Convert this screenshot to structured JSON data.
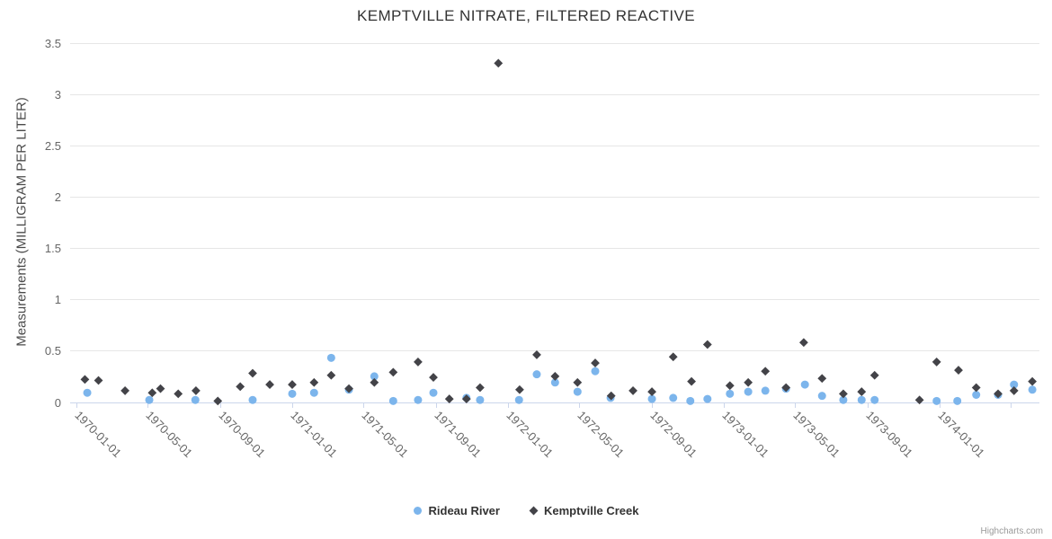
{
  "title": "KEMPTVILLE NITRATE, FILTERED REACTIVE",
  "credit": "Highcharts.com",
  "colors": {
    "series_rideau": "#7cb5ec",
    "series_kemptville": "#434348",
    "gridline": "#e6e6e6",
    "axis_line": "#ccd6eb",
    "tick_label": "#666666",
    "title_text": "#333333"
  },
  "chart_data": {
    "type": "scatter",
    "title": "KEMPTVILLE NITRATE, FILTERED REACTIVE",
    "xlabel": "",
    "ylabel": "Measurements (MILLIGRAM PER LITER)",
    "ylim": [
      0,
      3.5
    ],
    "y_ticks": [
      0,
      0.5,
      1,
      1.5,
      2,
      2.5,
      3,
      3.5
    ],
    "x_range": [
      "1969-12-21",
      "1974-06-19"
    ],
    "x_ticks": [
      "1970-01-01",
      "1970-05-01",
      "1970-09-01",
      "1971-01-01",
      "1971-05-01",
      "1971-09-01",
      "1972-01-01",
      "1972-05-01",
      "1972-09-01",
      "1973-01-01",
      "1973-05-01",
      "1973-09-01",
      "1974-01-01",
      "1974-05-01"
    ],
    "x_tick_labels": [
      "1970-01-01",
      "1970-05-01",
      "1970-09-01",
      "1971-01-01",
      "1971-05-01",
      "1971-09-01",
      "1972-01-01",
      "1972-05-01",
      "1972-09-01",
      "1973-01-01",
      "1973-05-01",
      "1973-09-01",
      "1974-01-01",
      ""
    ],
    "grid": "horizontal",
    "legend_position": "bottom-center",
    "series": [
      {
        "name": "Rideau River",
        "marker": "circle",
        "color": "#7cb5ec",
        "points": [
          [
            "1970-01-19",
            0.09
          ],
          [
            "1970-05-04",
            0.02
          ],
          [
            "1970-07-21",
            0.02
          ],
          [
            "1970-10-26",
            0.02
          ],
          [
            "1971-01-01",
            0.08
          ],
          [
            "1971-02-07",
            0.09
          ],
          [
            "1971-03-08",
            0.43
          ],
          [
            "1971-04-07",
            0.12
          ],
          [
            "1971-05-20",
            0.25
          ],
          [
            "1971-06-21",
            0.01
          ],
          [
            "1971-08-02",
            0.02
          ],
          [
            "1971-08-28",
            0.09
          ],
          [
            "1971-10-23",
            0.04
          ],
          [
            "1971-11-15",
            0.02
          ],
          [
            "1972-01-20",
            0.02
          ],
          [
            "1972-02-19",
            0.27
          ],
          [
            "1972-03-21",
            0.19
          ],
          [
            "1972-04-28",
            0.1
          ],
          [
            "1972-05-28",
            0.3
          ],
          [
            "1972-06-23",
            0.04
          ],
          [
            "1972-09-01",
            0.03
          ],
          [
            "1972-10-07",
            0.04
          ],
          [
            "1972-11-05",
            0.01
          ],
          [
            "1972-12-04",
            0.03
          ],
          [
            "1973-01-11",
            0.08
          ],
          [
            "1973-02-11",
            0.1
          ],
          [
            "1973-03-12",
            0.11
          ],
          [
            "1973-04-16",
            0.13
          ],
          [
            "1973-05-18",
            0.17
          ],
          [
            "1973-06-16",
            0.06
          ],
          [
            "1973-07-22",
            0.02
          ],
          [
            "1973-08-22",
            0.02
          ],
          [
            "1973-09-13",
            0.02
          ],
          [
            "1973-12-27",
            0.01
          ],
          [
            "1974-01-31",
            0.01
          ],
          [
            "1974-03-04",
            0.07
          ],
          [
            "1974-04-10",
            0.07
          ],
          [
            "1974-05-07",
            0.17
          ],
          [
            "1974-06-07",
            0.12
          ]
        ]
      },
      {
        "name": "Kemptville Creek",
        "marker": "diamond",
        "color": "#434348",
        "points": [
          [
            "1970-01-15",
            0.22
          ],
          [
            "1970-02-07",
            0.21
          ],
          [
            "1970-03-24",
            0.11
          ],
          [
            "1970-05-09",
            0.09
          ],
          [
            "1970-05-23",
            0.13
          ],
          [
            "1970-06-22",
            0.08
          ],
          [
            "1970-07-22",
            0.11
          ],
          [
            "1970-08-28",
            0.01
          ],
          [
            "1970-10-05",
            0.15
          ],
          [
            "1970-10-26",
            0.28
          ],
          [
            "1970-11-24",
            0.17
          ],
          [
            "1971-01-01",
            0.17
          ],
          [
            "1971-02-07",
            0.19
          ],
          [
            "1971-03-08",
            0.26
          ],
          [
            "1971-04-07",
            0.13
          ],
          [
            "1971-05-20",
            0.19
          ],
          [
            "1971-06-21",
            0.29
          ],
          [
            "1971-08-02",
            0.39
          ],
          [
            "1971-08-28",
            0.24
          ],
          [
            "1971-09-24",
            0.03
          ],
          [
            "1971-10-23",
            0.03
          ],
          [
            "1971-11-15",
            0.14
          ],
          [
            "1971-12-16",
            3.3
          ],
          [
            "1972-01-21",
            0.12
          ],
          [
            "1972-02-19",
            0.46
          ],
          [
            "1972-03-21",
            0.25
          ],
          [
            "1972-04-28",
            0.19
          ],
          [
            "1972-05-28",
            0.38
          ],
          [
            "1972-06-24",
            0.06
          ],
          [
            "1972-07-31",
            0.11
          ],
          [
            "1972-09-01",
            0.1
          ],
          [
            "1972-10-07",
            0.44
          ],
          [
            "1972-11-07",
            0.2
          ],
          [
            "1972-12-04",
            0.56
          ],
          [
            "1973-01-11",
            0.16
          ],
          [
            "1973-02-11",
            0.19
          ],
          [
            "1973-03-12",
            0.3
          ],
          [
            "1973-04-16",
            0.14
          ],
          [
            "1973-05-16",
            0.58
          ],
          [
            "1973-06-16",
            0.23
          ],
          [
            "1973-07-22",
            0.08
          ],
          [
            "1973-08-22",
            0.1
          ],
          [
            "1973-09-13",
            0.26
          ],
          [
            "1973-11-28",
            0.02
          ],
          [
            "1973-12-27",
            0.39
          ],
          [
            "1974-02-02",
            0.31
          ],
          [
            "1974-03-04",
            0.14
          ],
          [
            "1974-04-10",
            0.08
          ],
          [
            "1974-05-07",
            0.11
          ],
          [
            "1974-06-07",
            0.2
          ]
        ]
      }
    ]
  }
}
